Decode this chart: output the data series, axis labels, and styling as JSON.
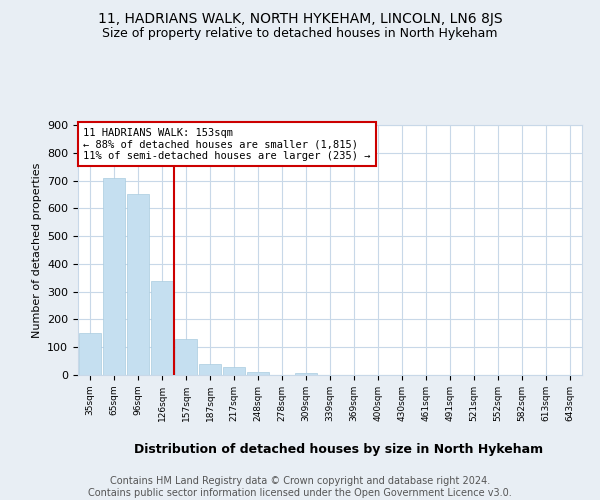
{
  "title1": "11, HADRIANS WALK, NORTH HYKEHAM, LINCOLN, LN6 8JS",
  "title2": "Size of property relative to detached houses in North Hykeham",
  "xlabel": "Distribution of detached houses by size in North Hykeham",
  "ylabel": "Number of detached properties",
  "footer": "Contains HM Land Registry data © Crown copyright and database right 2024.\nContains public sector information licensed under the Open Government Licence v3.0.",
  "categories": [
    "35sqm",
    "65sqm",
    "96sqm",
    "126sqm",
    "157sqm",
    "187sqm",
    "217sqm",
    "248sqm",
    "278sqm",
    "309sqm",
    "339sqm",
    "369sqm",
    "400sqm",
    "430sqm",
    "461sqm",
    "491sqm",
    "521sqm",
    "552sqm",
    "582sqm",
    "613sqm",
    "643sqm"
  ],
  "values": [
    150,
    710,
    650,
    340,
    130,
    40,
    28,
    10,
    0,
    8,
    0,
    0,
    0,
    0,
    0,
    0,
    0,
    0,
    0,
    0,
    0
  ],
  "bar_color": "#c5dff0",
  "bar_edge_color": "#aacce0",
  "annotation_text": "11 HADRIANS WALK: 153sqm\n← 88% of detached houses are smaller (1,815)\n11% of semi-detached houses are larger (235) →",
  "annotation_box_color": "#ffffff",
  "annotation_box_edge": "#cc0000",
  "vline_color": "#cc0000",
  "ylim": [
    0,
    900
  ],
  "yticks": [
    0,
    100,
    200,
    300,
    400,
    500,
    600,
    700,
    800,
    900
  ],
  "bg_color": "#e8eef4",
  "plot_bg_color": "#ffffff",
  "grid_color": "#c8d8e8",
  "title1_fontsize": 10,
  "title2_fontsize": 9,
  "xlabel_fontsize": 9,
  "footer_fontsize": 7,
  "ylabel_fontsize": 8,
  "annotation_fontsize": 7.5
}
